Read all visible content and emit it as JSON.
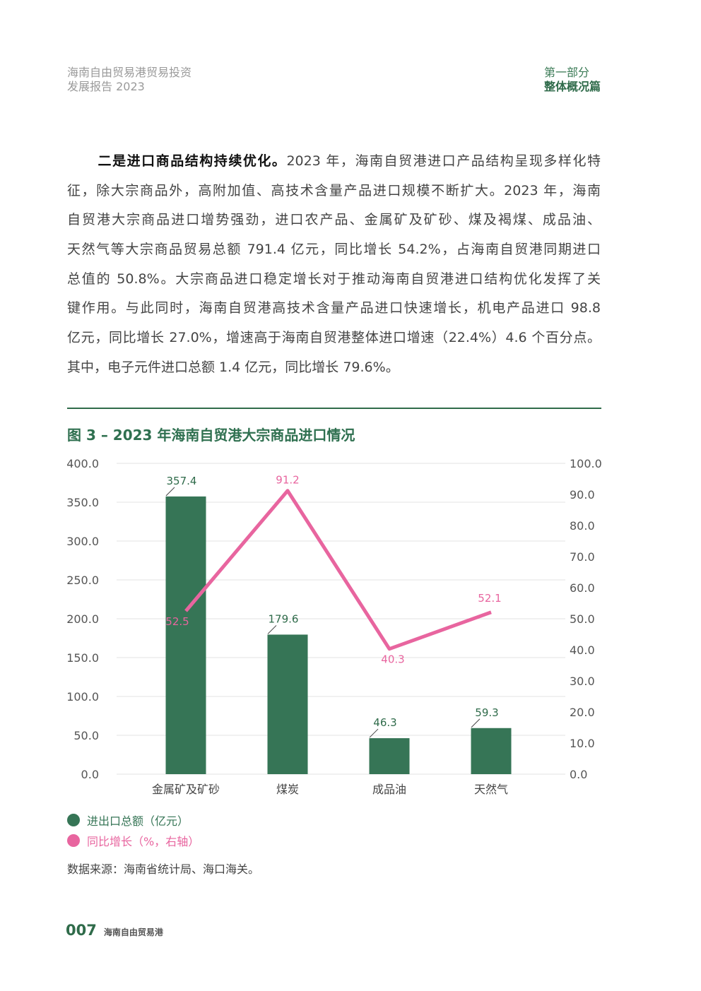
{
  "header": {
    "left_line1": "海南自由贸易港贸易投资",
    "left_line2": "发展报告 2023",
    "right_line1": "第一部分",
    "right_line2": "整体概况篇"
  },
  "body": {
    "lead": "二是进口商品结构持续优化。",
    "lines": [
      "2023 年，海南自贸港进口产品结构呈现多样化特",
      "征，除大宗商品外，高附加值、高技术含量产品进口规模不断扩大。2023 年，海南",
      "自贸港大宗商品进口增势强劲，进口农产品、金属矿及矿砂、煤及褐煤、成品油、",
      "天然气等大宗商品贸易总额 791.4 亿元，同比增长 54.2%，占海南自贸港同期进口",
      "总值的 50.8%。大宗商品进口稳定增长对于推动海南自贸港进口结构优化发挥了关",
      "键作用。与此同时，海南自贸港高技术含量产品进口快速增长，机电产品进口 98.8",
      "亿元，同比增长 27.0%，增速高于海南自贸港整体进口增速（22.4%）4.6 个百分点。",
      "其中，电子元件进口总额 1.4 亿元，同比增长 79.6%。"
    ]
  },
  "figure": {
    "title": "图 3 – 2023 年海南自贸港大宗商品进口情况",
    "source": "数据来源：海南省统计局、海口海关。"
  },
  "chart_data": {
    "type": "bar+line",
    "categories": [
      "金属矿及矿砂",
      "煤炭",
      "成品油",
      "天然气"
    ],
    "series": [
      {
        "name": "进出口总额（亿元）",
        "type": "bar",
        "axis": "left",
        "color": "#367556",
        "values": [
          357.4,
          179.6,
          46.3,
          59.3
        ]
      },
      {
        "name": "同比增长（%，右轴）",
        "type": "line",
        "axis": "right",
        "color": "#e8659f",
        "values": [
          52.5,
          91.2,
          40.3,
          52.1
        ]
      }
    ],
    "left_axis": {
      "range": [
        0,
        400
      ],
      "ticks": [
        "0.0",
        "50.0",
        "100.0",
        "150.0",
        "200.0",
        "250.0",
        "300.0",
        "350.0",
        "400.0"
      ]
    },
    "right_axis": {
      "range": [
        0,
        100
      ],
      "ticks": [
        "0.0",
        "10.0",
        "20.0",
        "30.0",
        "40.0",
        "50.0",
        "60.0",
        "70.0",
        "80.0",
        "90.0",
        "100.0"
      ]
    },
    "grid": true,
    "legend_position": "bottom-left"
  },
  "footer": {
    "page": "007",
    "name": "海南自由贸易港"
  }
}
